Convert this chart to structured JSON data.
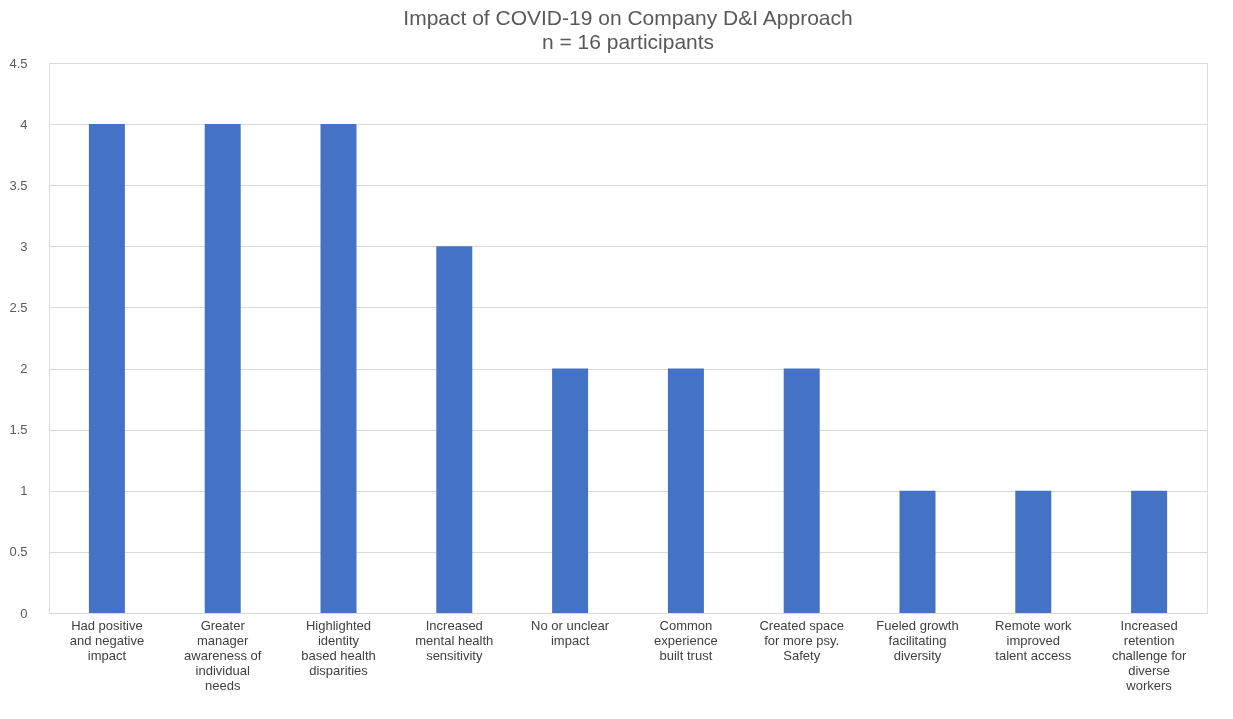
{
  "chart_data": {
    "type": "bar",
    "title": "Impact of COVID-19 on Company D&I Approach",
    "subtitle": "n = 16 participants",
    "categories": [
      "Had positive and negative impact",
      "Greater manager awareness of individual needs",
      "Highlighted identity based health disparities",
      "Increased mental health sensitivity",
      "No or unclear impact",
      "Common experience built trust",
      "Created space for more psy. Safety",
      "Fueled growth facilitating diversity",
      "Remote work improved talent access",
      "Increased retention challenge for diverse workers"
    ],
    "values": [
      4,
      4,
      4,
      3,
      2,
      2,
      2,
      1,
      1,
      1
    ],
    "color": "#4472c4",
    "ylim": [
      0,
      4.5
    ],
    "yticks": [
      0,
      0.5,
      1,
      1.5,
      2,
      2.5,
      3,
      3.5,
      4,
      4.5
    ],
    "grid": "y"
  }
}
